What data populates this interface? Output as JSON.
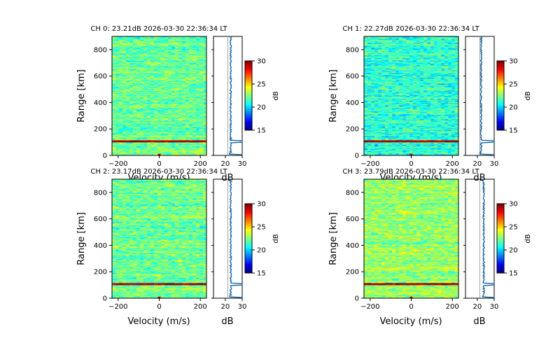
{
  "chart_data": [
    {
      "type": "heatmap",
      "title": "CH 0: 23.21dB 2026-03-30 22:36:34 LT",
      "xlabel": "Velocity (m/s)",
      "ylabel": "Range [km]",
      "xlim": [
        -230,
        230
      ],
      "ylim": [
        0,
        900
      ],
      "x_ticks": [
        -200,
        0,
        200
      ],
      "y_ticks": [
        0,
        200,
        400,
        600,
        800
      ],
      "colorbar": {
        "label": "dB",
        "range": [
          15,
          30
        ],
        "ticks": [
          15,
          20,
          25,
          30
        ],
        "colormap": "jet"
      },
      "profile": {
        "xlabel": "dB",
        "xlim": [
          13,
          30
        ],
        "x_ticks": [
          20,
          30
        ],
        "noise_level_db": 21.5,
        "baseline_db": 23.2,
        "echo_range_km": 105,
        "echo_db": 30,
        "ground_db": 30
      },
      "echo_range_km": 105
    },
    {
      "type": "heatmap",
      "title": "CH 1: 22.27dB 2026-03-30 22:36:34 LT",
      "xlabel": "Velocity (m/s)",
      "ylabel": "Range [km]",
      "xlim": [
        -230,
        230
      ],
      "ylim": [
        0,
        900
      ],
      "x_ticks": [
        -200,
        0,
        200
      ],
      "y_ticks": [
        0,
        200,
        400,
        600,
        800
      ],
      "colorbar": {
        "label": "dB",
        "range": [
          15,
          30
        ],
        "ticks": [
          15,
          20,
          25,
          30
        ],
        "colormap": "jet"
      },
      "profile": {
        "xlabel": "dB",
        "xlim": [
          13,
          30
        ],
        "x_ticks": [
          20,
          30
        ],
        "noise_level_db": 21.5,
        "baseline_db": 22.3,
        "echo_range_km": 105,
        "echo_db": 30,
        "ground_db": 30
      },
      "echo_range_km": 105
    },
    {
      "type": "heatmap",
      "title": "CH 2: 23.17dB 2026-03-30 22:36:34 LT",
      "xlabel": "Velocity (m/s)",
      "ylabel": "Range [km]",
      "xlim": [
        -230,
        230
      ],
      "ylim": [
        0,
        900
      ],
      "x_ticks": [
        -200,
        0,
        200
      ],
      "y_ticks": [
        0,
        200,
        400,
        600,
        800
      ],
      "colorbar": {
        "label": "dB",
        "range": [
          15,
          30
        ],
        "ticks": [
          15,
          20,
          25,
          30
        ],
        "colormap": "jet"
      },
      "profile": {
        "xlabel": "dB",
        "xlim": [
          13,
          30
        ],
        "x_ticks": [
          20,
          30
        ],
        "noise_level_db": 21.5,
        "baseline_db": 23.2,
        "echo_range_km": 105,
        "echo_db": 30,
        "ground_db": 30
      },
      "echo_range_km": 105
    },
    {
      "type": "heatmap",
      "title": "CH 3: 23.79dB 2026-03-30 22:36:34 LT",
      "xlabel": "Velocity (m/s)",
      "ylabel": "Range [km]",
      "xlim": [
        -230,
        230
      ],
      "ylim": [
        0,
        900
      ],
      "x_ticks": [
        -200,
        0,
        200
      ],
      "y_ticks": [
        0,
        200,
        400,
        600,
        800
      ],
      "colorbar": {
        "label": "dB",
        "range": [
          15,
          30
        ],
        "ticks": [
          15,
          20,
          25,
          30
        ],
        "colormap": "jet"
      },
      "profile": {
        "xlabel": "dB",
        "xlim": [
          13,
          30
        ],
        "x_ticks": [
          20,
          30
        ],
        "noise_level_db": 21.5,
        "baseline_db": 23.8,
        "echo_range_km": 105,
        "echo_db": 30,
        "ground_db": 30
      },
      "echo_range_km": 105
    }
  ]
}
